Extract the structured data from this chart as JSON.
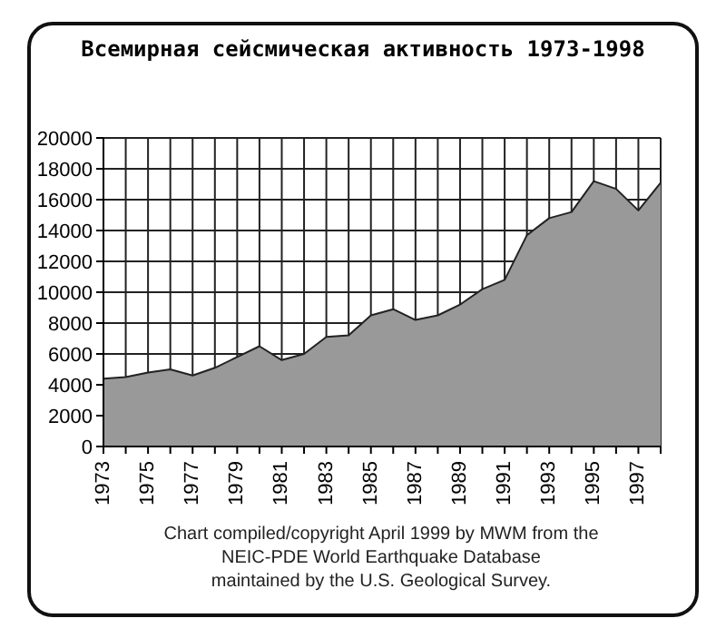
{
  "chart_data": {
    "type": "area",
    "title": "Всемирная сейсмическая активность 1973-1998",
    "x": [
      1973,
      1974,
      1975,
      1976,
      1977,
      1978,
      1979,
      1980,
      1981,
      1982,
      1983,
      1984,
      1985,
      1986,
      1987,
      1988,
      1989,
      1990,
      1991,
      1992,
      1993,
      1994,
      1995,
      1996,
      1997,
      1998
    ],
    "series": [
      {
        "color": "#999999",
        "values": [
          4400,
          4500,
          4800,
          5000,
          4600,
          5100,
          5800,
          6500,
          5600,
          6000,
          7100,
          7200,
          8500,
          8900,
          8200,
          8500,
          9200,
          10200,
          10800,
          13700,
          14800,
          15200,
          17200,
          16700,
          15300,
          17100
        ]
      }
    ],
    "xlim": [
      1973,
      1998
    ],
    "xticks": [
      1973,
      {
        "value": 1974,
        "label": null
      },
      1975,
      {
        "value": 1976,
        "label": null
      },
      1977,
      {
        "value": 1978,
        "label": null
      },
      1979,
      {
        "value": 1980,
        "label": null
      },
      1981,
      {
        "value": 1982,
        "label": null
      },
      1983,
      {
        "value": 1984,
        "label": null
      },
      1985,
      {
        "value": 1986,
        "label": null
      },
      1987,
      {
        "value": 1988,
        "label": null
      },
      1989,
      {
        "value": 1990,
        "label": null
      },
      1991,
      {
        "value": 1992,
        "label": null
      },
      1993,
      {
        "value": 1994,
        "label": null
      },
      1995,
      {
        "value": 1996,
        "label": null
      },
      1997,
      {
        "value": 1998,
        "label": null
      }
    ],
    "ylim": [
      0,
      20000
    ],
    "yticks": [
      0,
      2000,
      4000,
      6000,
      8000,
      10000,
      12000,
      14000,
      16000,
      18000,
      20000
    ],
    "grid": true,
    "legend": false,
    "annotations": [
      "Chart compiled/copyright April 1999 by MWM from the",
      "NEIC-PDE World Earthquake Database",
      "maintained by the U.S. Geological Survey."
    ]
  }
}
